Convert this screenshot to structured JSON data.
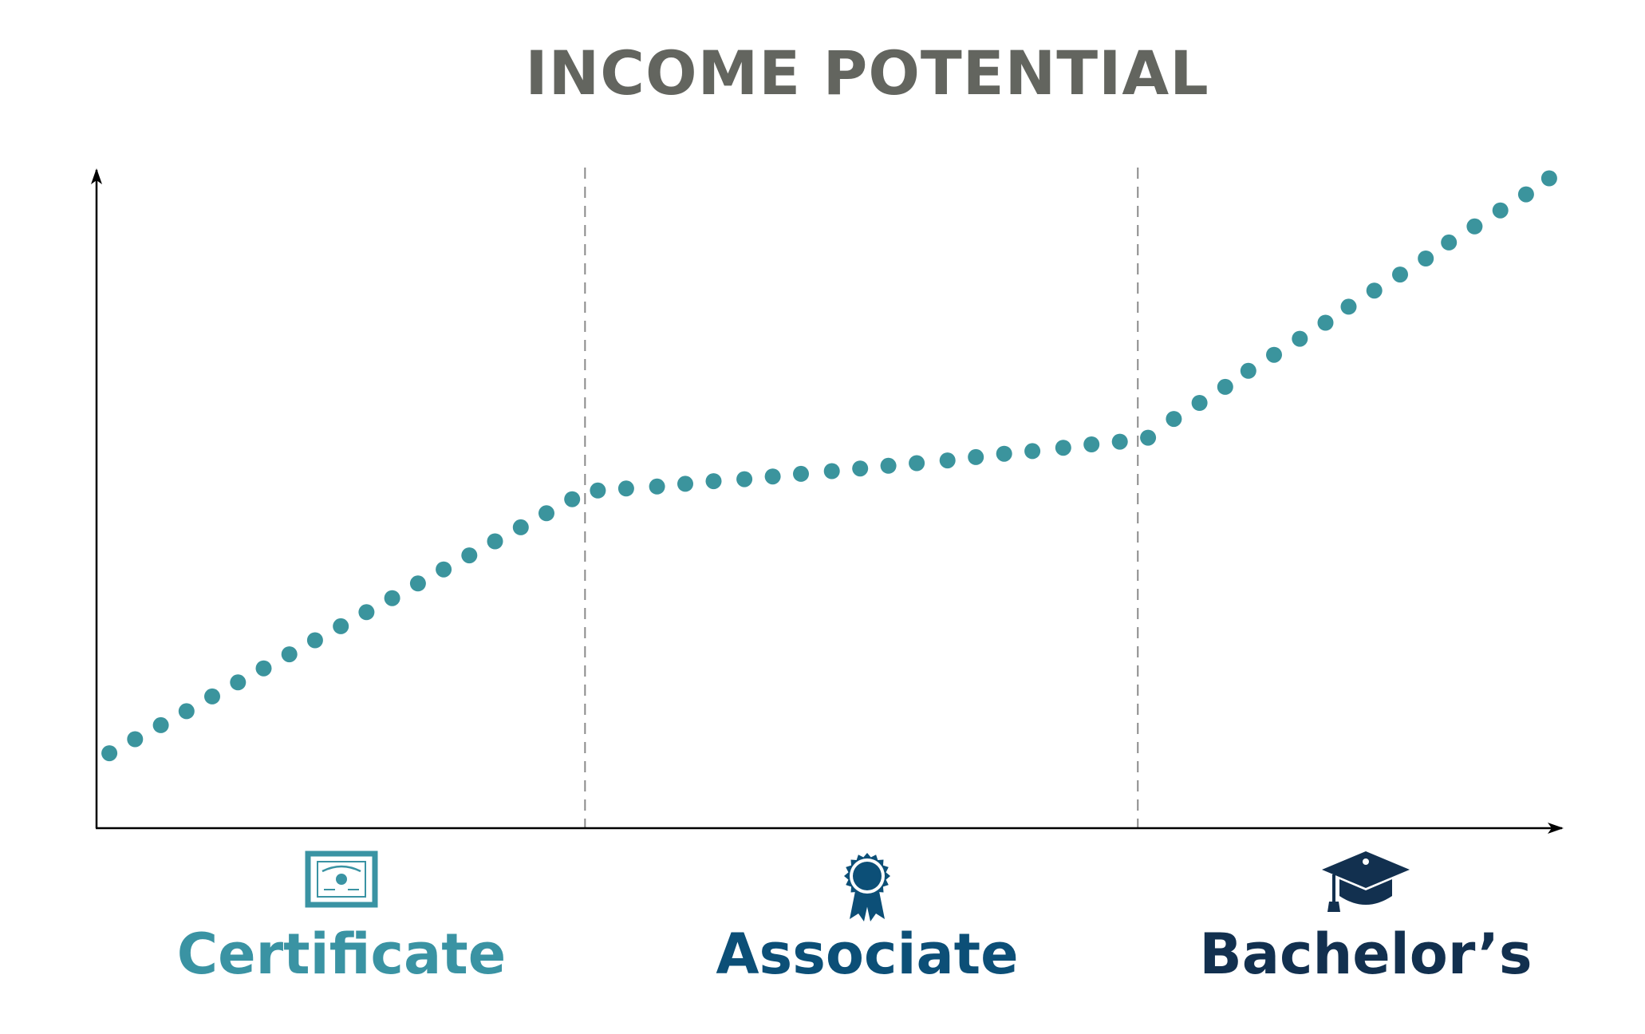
{
  "chart_data": {
    "type": "scatter",
    "title": "INCOME POTENTIAL",
    "xlabel": "",
    "ylabel": "",
    "xlim": [
      0,
      57
    ],
    "ylim": [
      0,
      1
    ],
    "grid": false,
    "legend": "none",
    "categories": [
      "Certificate",
      "Associate",
      "Bachelor’s"
    ],
    "category_colors": [
      "#3a93a3",
      "#0c4f77",
      "#12304f"
    ],
    "category_icons": [
      "certificate-icon",
      "ribbon-award-icon",
      "graduation-cap-icon"
    ],
    "boundaries": [
      19,
      40.5
    ],
    "series": [
      {
        "color": "#3b949d",
        "points": [
          [
            0.5,
            0.112
          ],
          [
            1.5,
            0.133
          ],
          [
            2.5,
            0.154
          ],
          [
            3.5,
            0.175
          ],
          [
            4.5,
            0.197
          ],
          [
            5.5,
            0.218
          ],
          [
            6.5,
            0.239
          ],
          [
            7.5,
            0.26
          ],
          [
            8.5,
            0.281
          ],
          [
            9.5,
            0.302
          ],
          [
            10.5,
            0.323
          ],
          [
            11.5,
            0.344
          ],
          [
            12.5,
            0.366
          ],
          [
            13.5,
            0.387
          ],
          [
            14.5,
            0.408
          ],
          [
            15.5,
            0.429
          ],
          [
            16.5,
            0.45
          ],
          [
            17.5,
            0.471
          ],
          [
            18.5,
            0.492
          ],
          [
            19.5,
            0.505
          ],
          [
            20.6,
            0.508
          ],
          [
            21.8,
            0.511
          ],
          [
            22.9,
            0.515
          ],
          [
            24.0,
            0.519
          ],
          [
            25.2,
            0.522
          ],
          [
            26.3,
            0.526
          ],
          [
            27.4,
            0.53
          ],
          [
            28.6,
            0.534
          ],
          [
            29.7,
            0.538
          ],
          [
            30.8,
            0.542
          ],
          [
            31.9,
            0.546
          ],
          [
            33.1,
            0.55
          ],
          [
            34.2,
            0.555
          ],
          [
            35.3,
            0.56
          ],
          [
            36.4,
            0.564
          ],
          [
            37.6,
            0.569
          ],
          [
            38.7,
            0.574
          ],
          [
            39.8,
            0.578
          ],
          [
            40.9,
            0.584
          ],
          [
            41.9,
            0.612
          ],
          [
            42.9,
            0.636
          ],
          [
            43.9,
            0.66
          ],
          [
            44.8,
            0.684
          ],
          [
            45.8,
            0.708
          ],
          [
            46.8,
            0.732
          ],
          [
            47.8,
            0.756
          ],
          [
            48.7,
            0.78
          ],
          [
            49.7,
            0.804
          ],
          [
            50.7,
            0.828
          ],
          [
            51.7,
            0.852
          ],
          [
            52.6,
            0.876
          ],
          [
            53.6,
            0.9
          ],
          [
            54.6,
            0.924
          ],
          [
            55.6,
            0.948
          ],
          [
            56.5,
            0.972
          ]
        ]
      }
    ]
  }
}
